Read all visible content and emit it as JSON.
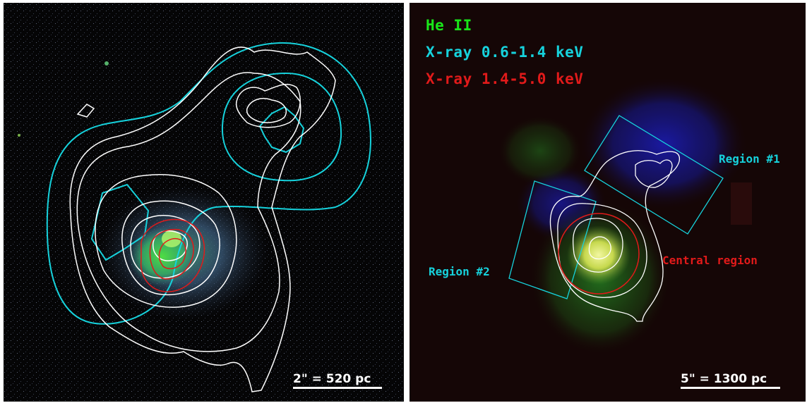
{
  "left_panel": {
    "scale_bar": "2\" = 520 pc"
  },
  "right_panel": {
    "legend": {
      "he2": "He II",
      "xray_soft": "X-ray 0.6-1.4 keV",
      "xray_hard": "X-ray 1.4-5.0 keV"
    },
    "regions": {
      "region1": "Region #1",
      "region2": "Region #2",
      "central": "Central region"
    },
    "scale_bar": "5\" = 1300 pc"
  },
  "colors": {
    "he2": "#19e619",
    "xray_soft": "#16d2dc",
    "xray_hard": "#e11a1a",
    "contour_white": "#ffffff",
    "left_background": "#050506",
    "right_background": "#150606"
  }
}
